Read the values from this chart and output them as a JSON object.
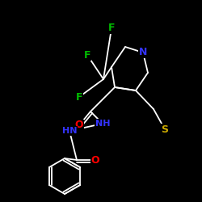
{
  "background_color": "#000000",
  "bond_color": "#ffffff",
  "atom_colors": {
    "F": "#00bb00",
    "N": "#3333ff",
    "O": "#ff0000",
    "S": "#ccaa00",
    "C": "#ffffff"
  },
  "figsize": [
    2.5,
    2.5
  ],
  "dpi": 100
}
